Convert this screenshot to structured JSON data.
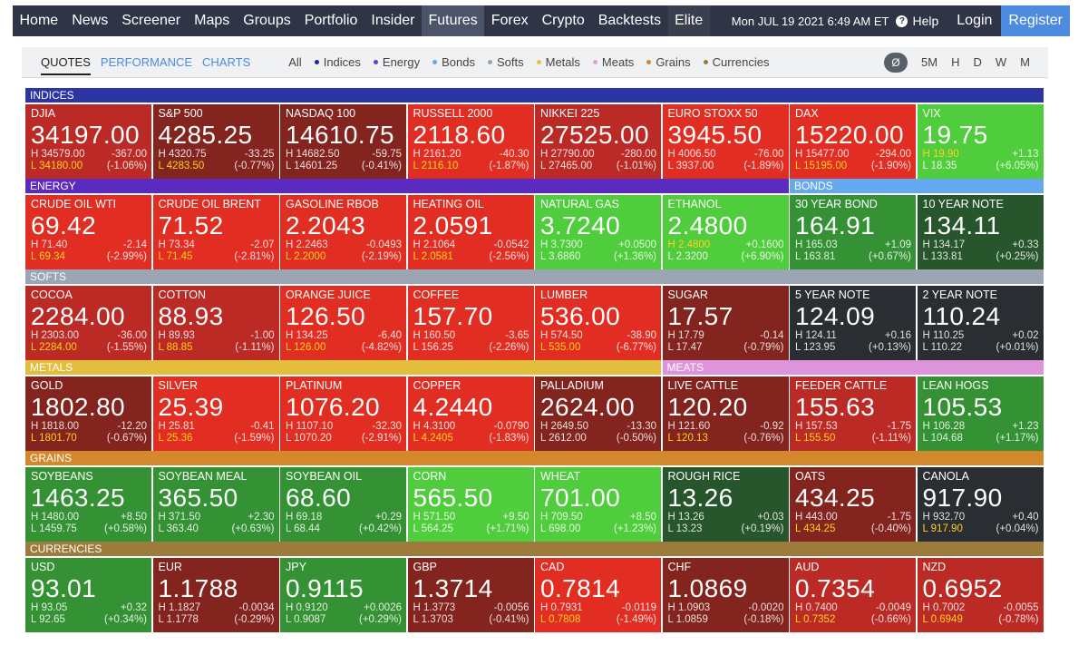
{
  "nav": {
    "items": [
      "Home",
      "News",
      "Screener",
      "Maps",
      "Groups",
      "Portfolio",
      "Insider",
      "Futures",
      "Forex",
      "Crypto",
      "Backtests",
      "Elite"
    ],
    "active": "Futures",
    "date": "Mon JUL 19 2021 6:49 AM ET",
    "help": "Help",
    "help_icon": "?",
    "login": "Login",
    "register": "Register"
  },
  "subtabs": [
    "QUOTES",
    "PERFORMANCE",
    "CHARTS"
  ],
  "filters": [
    {
      "label": "All",
      "color": ""
    },
    {
      "label": "Indices",
      "color": "#1f2d8c"
    },
    {
      "label": "Energy",
      "color": "#6a3bd6"
    },
    {
      "label": "Bonds",
      "color": "#64a9f0"
    },
    {
      "label": "Softs",
      "color": "#9aa3b1"
    },
    {
      "label": "Metals",
      "color": "#e9c43d"
    },
    {
      "label": "Meats",
      "color": "#e49fe0"
    },
    {
      "label": "Grains",
      "color": "#d48a2c"
    },
    {
      "label": "Currencies",
      "color": "#9a7a3a"
    }
  ],
  "periods": [
    "Ø",
    "5M",
    "H",
    "D",
    "W",
    "M"
  ],
  "groups": [
    {
      "name": "INDICES",
      "color": "#2b35a3"
    },
    {
      "name": "ENERGY",
      "color": "#5b2ac0"
    },
    {
      "name": "BONDS",
      "color": "#64a9f0"
    },
    {
      "name": "SOFTS",
      "color": "#9ba5b4"
    },
    {
      "name": "METALS",
      "color": "#e3be3d"
    },
    {
      "name": "MEATS",
      "color": "#de94da"
    },
    {
      "name": "GRAINS",
      "color": "#d3882b"
    },
    {
      "name": "CURRENCIES",
      "color": "#9c7b3c"
    }
  ],
  "colors": {
    "red_bright": "#e12d22",
    "red_mid": "#bb2a25",
    "red_dark": "#83241f",
    "green_bright": "#4fcd3c",
    "green_mid": "#349235",
    "green_dark": "#27552c",
    "neutral": "#2a2d31"
  },
  "tiles": [
    {
      "name": "DJIA",
      "price": "34197.00",
      "high": "34579.00",
      "low": "34180.00",
      "change": "-367.00",
      "pct": "(-1.06%)",
      "color": "red_mid",
      "low_hl": true,
      "high_hl": false
    },
    {
      "name": "S&P 500",
      "price": "4285.25",
      "high": "4320.75",
      "low": "4283.50",
      "change": "-33.25",
      "pct": "(-0.77%)",
      "color": "red_dark",
      "low_hl": true,
      "high_hl": false
    },
    {
      "name": "NASDAQ 100",
      "price": "14610.75",
      "high": "14682.50",
      "low": "14601.25",
      "change": "-59.75",
      "pct": "(-0.41%)",
      "color": "red_dark",
      "low_hl": false,
      "high_hl": false
    },
    {
      "name": "RUSSELL 2000",
      "price": "2118.60",
      "high": "2161.20",
      "low": "2116.10",
      "change": "-40.30",
      "pct": "(-1.87%)",
      "color": "red_bright",
      "low_hl": true,
      "high_hl": false
    },
    {
      "name": "NIKKEI 225",
      "price": "27525.00",
      "high": "27790.00",
      "low": "27465.00",
      "change": "-280.00",
      "pct": "(-1.01%)",
      "color": "red_mid",
      "low_hl": false,
      "high_hl": false
    },
    {
      "name": "EURO STOXX 50",
      "price": "3945.50",
      "high": "4006.50",
      "low": "3937.00",
      "change": "-76.00",
      "pct": "(-1.89%)",
      "color": "red_bright",
      "low_hl": false,
      "high_hl": false
    },
    {
      "name": "DAX",
      "price": "15220.00",
      "high": "15477.00",
      "low": "15195.00",
      "change": "-294.00",
      "pct": "(-1.90%)",
      "color": "red_bright",
      "low_hl": true,
      "high_hl": false
    },
    {
      "name": "VIX",
      "price": "19.75",
      "high": "19.90",
      "low": "18.35",
      "change": "+1.13",
      "pct": "(+6.05%)",
      "color": "green_bright",
      "low_hl": false,
      "high_hl": true
    },
    {
      "name": "CRUDE OIL WTI",
      "price": "69.42",
      "high": "71.40",
      "low": "69.34",
      "change": "-2.14",
      "pct": "(-2.99%)",
      "color": "red_bright",
      "low_hl": true,
      "high_hl": false
    },
    {
      "name": "CRUDE OIL BRENT",
      "price": "71.52",
      "high": "73.34",
      "low": "71.45",
      "change": "-2.07",
      "pct": "(-2.81%)",
      "color": "red_bright",
      "low_hl": true,
      "high_hl": false
    },
    {
      "name": "GASOLINE RBOB",
      "price": "2.2043",
      "high": "2.2463",
      "low": "2.2000",
      "change": "-0.0493",
      "pct": "(-2.19%)",
      "color": "red_bright",
      "low_hl": true,
      "high_hl": false
    },
    {
      "name": "HEATING OIL",
      "price": "2.0591",
      "high": "2.1064",
      "low": "2.0581",
      "change": "-0.0542",
      "pct": "(-2.56%)",
      "color": "red_bright",
      "low_hl": true,
      "high_hl": false
    },
    {
      "name": "NATURAL GAS",
      "price": "3.7240",
      "high": "3.7300",
      "low": "3.6860",
      "change": "+0.0500",
      "pct": "(+1.36%)",
      "color": "green_bright",
      "low_hl": false,
      "high_hl": false
    },
    {
      "name": "ETHANOL",
      "price": "2.4800",
      "high": "2.4800",
      "low": "2.3200",
      "change": "+0.1600",
      "pct": "(+6.90%)",
      "color": "green_bright",
      "low_hl": false,
      "high_hl": true
    },
    {
      "name": "30 YEAR BOND",
      "price": "164.91",
      "high": "165.03",
      "low": "163.81",
      "change": "+1.09",
      "pct": "(+0.67%)",
      "color": "green_mid",
      "low_hl": false,
      "high_hl": false
    },
    {
      "name": "10 YEAR NOTE",
      "price": "134.11",
      "high": "134.17",
      "low": "133.81",
      "change": "+0.33",
      "pct": "(+0.25%)",
      "color": "green_dark",
      "low_hl": false,
      "high_hl": false
    },
    {
      "name": "COCOA",
      "price": "2284.00",
      "high": "2303.00",
      "low": "2284.00",
      "change": "-36.00",
      "pct": "(-1.55%)",
      "color": "red_mid",
      "low_hl": true,
      "high_hl": false
    },
    {
      "name": "COTTON",
      "price": "88.93",
      "high": "89.93",
      "low": "88.85",
      "change": "-1.00",
      "pct": "(-1.11%)",
      "color": "red_mid",
      "low_hl": true,
      "high_hl": false
    },
    {
      "name": "ORANGE JUICE",
      "price": "126.50",
      "high": "134.25",
      "low": "126.00",
      "change": "-6.40",
      "pct": "(-4.82%)",
      "color": "red_bright",
      "low_hl": true,
      "high_hl": false
    },
    {
      "name": "COFFEE",
      "price": "157.70",
      "high": "160.50",
      "low": "156.25",
      "change": "-3.65",
      "pct": "(-2.26%)",
      "color": "red_bright",
      "low_hl": false,
      "high_hl": false
    },
    {
      "name": "LUMBER",
      "price": "536.00",
      "high": "574.50",
      "low": "535.00",
      "change": "-38.90",
      "pct": "(-6.77%)",
      "color": "red_bright",
      "low_hl": true,
      "high_hl": false
    },
    {
      "name": "SUGAR",
      "price": "17.57",
      "high": "17.79",
      "low": "17.47",
      "change": "-0.14",
      "pct": "(-0.79%)",
      "color": "red_dark",
      "low_hl": false,
      "high_hl": false
    },
    {
      "name": "5 YEAR NOTE",
      "price": "124.09",
      "high": "124.11",
      "low": "123.95",
      "change": "+0.16",
      "pct": "(+0.13%)",
      "color": "neutral",
      "low_hl": false,
      "high_hl": false
    },
    {
      "name": "2 YEAR NOTE",
      "price": "110.24",
      "high": "110.25",
      "low": "110.22",
      "change": "+0.02",
      "pct": "(+0.01%)",
      "color": "neutral",
      "low_hl": false,
      "high_hl": false
    },
    {
      "name": "GOLD",
      "price": "1802.80",
      "high": "1818.00",
      "low": "1801.70",
      "change": "-12.20",
      "pct": "(-0.67%)",
      "color": "red_dark",
      "low_hl": true,
      "high_hl": false
    },
    {
      "name": "SILVER",
      "price": "25.39",
      "high": "25.81",
      "low": "25.36",
      "change": "-0.41",
      "pct": "(-1.59%)",
      "color": "red_bright",
      "low_hl": true,
      "high_hl": false
    },
    {
      "name": "PLATINUM",
      "price": "1076.20",
      "high": "1107.10",
      "low": "1070.20",
      "change": "-32.30",
      "pct": "(-2.91%)",
      "color": "red_bright",
      "low_hl": false,
      "high_hl": false
    },
    {
      "name": "COPPER",
      "price": "4.2440",
      "high": "4.3100",
      "low": "4.2405",
      "change": "-0.0790",
      "pct": "(-1.83%)",
      "color": "red_bright",
      "low_hl": true,
      "high_hl": false
    },
    {
      "name": "PALLADIUM",
      "price": "2624.00",
      "high": "2649.50",
      "low": "2612.00",
      "change": "-13.30",
      "pct": "(-0.50%)",
      "color": "red_dark",
      "low_hl": false,
      "high_hl": false
    },
    {
      "name": "LIVE CATTLE",
      "price": "120.20",
      "high": "121.60",
      "low": "120.13",
      "change": "-0.92",
      "pct": "(-0.76%)",
      "color": "red_dark",
      "low_hl": true,
      "high_hl": false
    },
    {
      "name": "FEEDER CATTLE",
      "price": "155.63",
      "high": "157.53",
      "low": "155.50",
      "change": "-1.75",
      "pct": "(-1.11%)",
      "color": "red_mid",
      "low_hl": true,
      "high_hl": false
    },
    {
      "name": "LEAN HOGS",
      "price": "105.53",
      "high": "106.28",
      "low": "104.68",
      "change": "+1.23",
      "pct": "(+1.17%)",
      "color": "green_mid",
      "low_hl": false,
      "high_hl": false
    },
    {
      "name": "SOYBEANS",
      "price": "1463.25",
      "high": "1480.00",
      "low": "1459.75",
      "change": "+8.50",
      "pct": "(+0.58%)",
      "color": "green_mid",
      "low_hl": false,
      "high_hl": false
    },
    {
      "name": "SOYBEAN MEAL",
      "price": "365.50",
      "high": "371.50",
      "low": "363.40",
      "change": "+2.30",
      "pct": "(+0.63%)",
      "color": "green_mid",
      "low_hl": false,
      "high_hl": false
    },
    {
      "name": "SOYBEAN OIL",
      "price": "68.60",
      "high": "69.18",
      "low": "68.44",
      "change": "+0.29",
      "pct": "(+0.42%)",
      "color": "green_mid",
      "low_hl": false,
      "high_hl": false
    },
    {
      "name": "CORN",
      "price": "565.50",
      "high": "571.50",
      "low": "564.25",
      "change": "+9.50",
      "pct": "(+1.71%)",
      "color": "green_bright",
      "low_hl": false,
      "high_hl": false
    },
    {
      "name": "WHEAT",
      "price": "701.00",
      "high": "709.50",
      "low": "698.00",
      "change": "+8.50",
      "pct": "(+1.23%)",
      "color": "green_bright",
      "low_hl": false,
      "high_hl": false
    },
    {
      "name": "ROUGH RICE",
      "price": "13.26",
      "high": "13.26",
      "low": "13.23",
      "change": "+0.03",
      "pct": "(+0.19%)",
      "color": "green_dark",
      "low_hl": false,
      "high_hl": false
    },
    {
      "name": "OATS",
      "price": "434.25",
      "high": "443.00",
      "low": "434.25",
      "change": "-1.75",
      "pct": "(-0.40%)",
      "color": "red_dark",
      "low_hl": true,
      "high_hl": false
    },
    {
      "name": "CANOLA",
      "price": "917.90",
      "high": "932.70",
      "low": "917.90",
      "change": "+0.40",
      "pct": "(+0.04%)",
      "color": "neutral",
      "low_hl": true,
      "high_hl": false
    },
    {
      "name": "USD",
      "price": "93.01",
      "high": "93.05",
      "low": "92.65",
      "change": "+0.32",
      "pct": "(+0.34%)",
      "color": "green_mid",
      "low_hl": false,
      "high_hl": false
    },
    {
      "name": "EUR",
      "price": "1.1788",
      "high": "1.1827",
      "low": "1.1778",
      "change": "-0.0034",
      "pct": "(-0.29%)",
      "color": "red_dark",
      "low_hl": false,
      "high_hl": false
    },
    {
      "name": "JPY",
      "price": "0.9115",
      "high": "0.9120",
      "low": "0.9087",
      "change": "+0.0026",
      "pct": "(+0.29%)",
      "color": "green_mid",
      "low_hl": false,
      "high_hl": false
    },
    {
      "name": "GBP",
      "price": "1.3714",
      "high": "1.3773",
      "low": "1.3703",
      "change": "-0.0056",
      "pct": "(-0.41%)",
      "color": "red_dark",
      "low_hl": false,
      "high_hl": false
    },
    {
      "name": "CAD",
      "price": "0.7814",
      "high": "0.7931",
      "low": "0.7808",
      "change": "-0.0119",
      "pct": "(-1.49%)",
      "color": "red_bright",
      "low_hl": true,
      "high_hl": false
    },
    {
      "name": "CHF",
      "price": "1.0869",
      "high": "1.0903",
      "low": "1.0859",
      "change": "-0.0020",
      "pct": "(-0.18%)",
      "color": "red_dark",
      "low_hl": false,
      "high_hl": false
    },
    {
      "name": "AUD",
      "price": "0.7354",
      "high": "0.7400",
      "low": "0.7352",
      "change": "-0.0049",
      "pct": "(-0.66%)",
      "color": "red_mid",
      "low_hl": true,
      "high_hl": false
    },
    {
      "name": "NZD",
      "price": "0.6952",
      "high": "0.7002",
      "low": "0.6949",
      "change": "-0.0055",
      "pct": "(-0.78%)",
      "color": "red_mid",
      "low_hl": true,
      "high_hl": false
    }
  ]
}
